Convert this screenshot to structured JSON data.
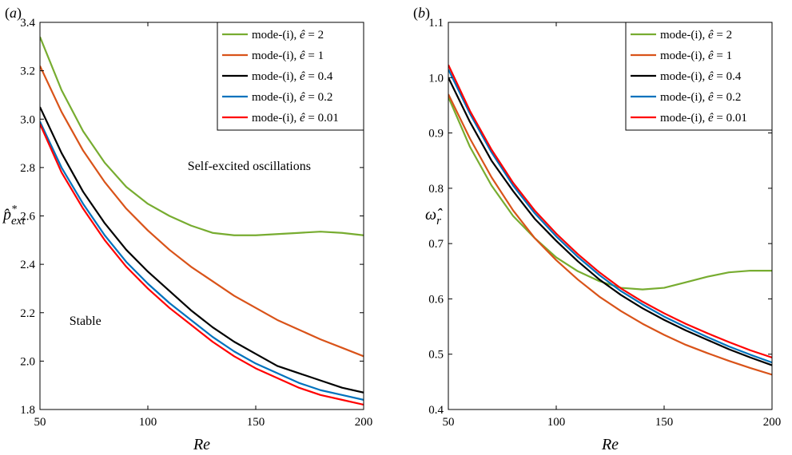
{
  "chart_data": [
    {
      "type": "line",
      "panel_label": "(a)",
      "xlabel": "Re",
      "ylabel": "p̂*ext",
      "xlim": [
        50,
        200
      ],
      "ylim": [
        1.8,
        3.4
      ],
      "xticks": [
        50,
        100,
        150,
        200
      ],
      "yticks": [
        1.8,
        2.0,
        2.2,
        2.4,
        2.6,
        2.8,
        3.0,
        3.2,
        3.4
      ],
      "ytick_labels": [
        "1.8",
        "2.0",
        "2.2",
        "2.4",
        "2.6",
        "2.8",
        "3.0",
        "3.2",
        "3.4"
      ],
      "grid": false,
      "legend_position": "top-right",
      "annotations": [
        {
          "text": "Self-excited oscillations",
          "x": 147,
          "y": 2.79
        },
        {
          "text": "Stable",
          "x": 71,
          "y": 2.15
        }
      ],
      "x": [
        50,
        60,
        70,
        80,
        90,
        100,
        110,
        120,
        130,
        140,
        150,
        160,
        170,
        180,
        190,
        200
      ],
      "series": [
        {
          "name": "mode-(i), ê = 2",
          "color": "#77ac30",
          "values": [
            3.34,
            3.12,
            2.95,
            2.82,
            2.72,
            2.65,
            2.6,
            2.56,
            2.53,
            2.52,
            2.52,
            2.525,
            2.53,
            2.535,
            2.53,
            2.52
          ]
        },
        {
          "name": "mode-(i), ê = 1",
          "color": "#d95319",
          "values": [
            3.22,
            3.03,
            2.87,
            2.74,
            2.63,
            2.54,
            2.46,
            2.39,
            2.33,
            2.27,
            2.22,
            2.17,
            2.13,
            2.09,
            2.055,
            2.02
          ]
        },
        {
          "name": "mode-(i), ê = 0.4",
          "color": "#000000",
          "values": [
            3.05,
            2.86,
            2.7,
            2.57,
            2.46,
            2.37,
            2.29,
            2.21,
            2.14,
            2.08,
            2.03,
            1.98,
            1.95,
            1.92,
            1.89,
            1.87
          ]
        },
        {
          "name": "mode-(i), ê = 0.2",
          "color": "#0072bd",
          "values": [
            2.99,
            2.8,
            2.65,
            2.52,
            2.41,
            2.32,
            2.24,
            2.17,
            2.1,
            2.04,
            1.99,
            1.95,
            1.91,
            1.88,
            1.86,
            1.84
          ]
        },
        {
          "name": "mode-(i), ê = 0.01",
          "color": "#ff0000",
          "values": [
            2.98,
            2.78,
            2.63,
            2.5,
            2.39,
            2.3,
            2.22,
            2.15,
            2.08,
            2.02,
            1.97,
            1.93,
            1.89,
            1.86,
            1.84,
            1.82
          ]
        }
      ]
    },
    {
      "type": "line",
      "panel_label": "(b)",
      "xlabel": "Re",
      "ylabel": "ω̂r",
      "xlim": [
        50,
        200
      ],
      "ylim": [
        0.4,
        1.1
      ],
      "xticks": [
        50,
        100,
        150,
        200
      ],
      "yticks": [
        0.4,
        0.5,
        0.6,
        0.7,
        0.8,
        0.9,
        1.0,
        1.1
      ],
      "ytick_labels": [
        "0.4",
        "0.5",
        "0.6",
        "0.7",
        "0.8",
        "0.9",
        "1.0",
        "1.1"
      ],
      "grid": false,
      "legend_position": "top-right",
      "x": [
        50,
        60,
        70,
        80,
        90,
        100,
        110,
        120,
        130,
        140,
        150,
        160,
        170,
        180,
        190,
        200
      ],
      "series": [
        {
          "name": "mode-(i), ê = 2",
          "color": "#77ac30",
          "values": [
            0.965,
            0.875,
            0.805,
            0.75,
            0.71,
            0.675,
            0.65,
            0.632,
            0.62,
            0.617,
            0.62,
            0.63,
            0.64,
            0.648,
            0.651,
            0.651
          ]
        },
        {
          "name": "mode-(i), ê = 1",
          "color": "#d95319",
          "values": [
            0.97,
            0.89,
            0.82,
            0.76,
            0.71,
            0.67,
            0.635,
            0.604,
            0.578,
            0.555,
            0.535,
            0.517,
            0.502,
            0.488,
            0.475,
            0.463
          ]
        },
        {
          "name": "mode-(i), ê = 0.4",
          "color": "#000000",
          "values": [
            1.0,
            0.92,
            0.85,
            0.795,
            0.745,
            0.705,
            0.668,
            0.635,
            0.607,
            0.583,
            0.562,
            0.543,
            0.526,
            0.509,
            0.494,
            0.48
          ]
        },
        {
          "name": "mode-(i), ê = 0.2",
          "color": "#0072bd",
          "values": [
            1.015,
            0.935,
            0.865,
            0.805,
            0.755,
            0.713,
            0.676,
            0.643,
            0.614,
            0.59,
            0.568,
            0.549,
            0.531,
            0.514,
            0.499,
            0.485
          ]
        },
        {
          "name": "mode-(i), ê = 0.01",
          "color": "#ff0000",
          "values": [
            1.023,
            0.94,
            0.87,
            0.81,
            0.76,
            0.718,
            0.681,
            0.648,
            0.619,
            0.595,
            0.574,
            0.555,
            0.538,
            0.522,
            0.507,
            0.494
          ]
        }
      ]
    }
  ]
}
